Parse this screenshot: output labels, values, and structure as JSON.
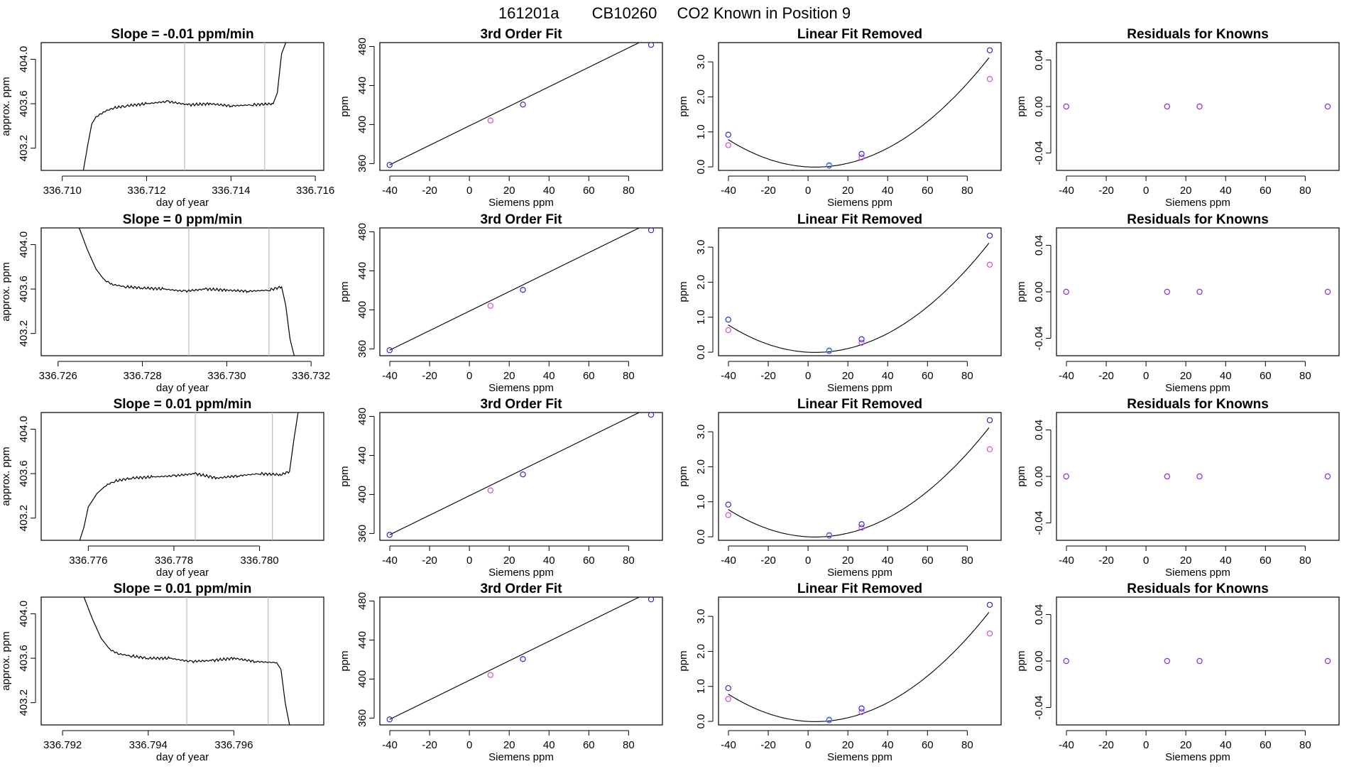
{
  "page": {
    "title_id": "161201a",
    "title_cyl": "CB10260",
    "title_text": "CO2 Known in Position  9"
  },
  "chart_data": [
    {
      "panel": "r1-trace",
      "type": "line",
      "title": "Slope =  -0.01  ppm/min",
      "xlabel": "day of year",
      "ylabel": "approx. ppm",
      "xlim": [
        336.7095,
        336.7162
      ],
      "ylim": [
        403.0,
        404.15
      ],
      "xticks": [
        336.71,
        336.712,
        336.714,
        336.716
      ],
      "xtick_labels": [
        "336.710",
        "336.712",
        "336.714",
        "336.716"
      ],
      "yticks": [
        403.2,
        403.6,
        404.0
      ],
      "ytick_labels": [
        "403.2",
        "403.6",
        "404.0"
      ],
      "vlines": [
        336.7129,
        336.7148
      ],
      "x": [
        336.7105,
        336.7106,
        336.7107,
        336.7108,
        336.711,
        336.7112,
        336.7115,
        336.712,
        336.7125,
        336.713,
        336.7135,
        336.714,
        336.7145,
        336.715,
        336.7151,
        336.7152,
        336.7153
      ],
      "y": [
        403.0,
        403.22,
        403.42,
        403.48,
        403.53,
        403.56,
        403.58,
        403.6,
        403.62,
        403.59,
        403.6,
        403.58,
        403.59,
        403.6,
        403.7,
        404.05,
        404.15
      ]
    },
    {
      "panel": "r1-fit",
      "type": "scatter",
      "title": "3rd Order Fit",
      "xlabel": "Siemens ppm",
      "ylabel": "ppm",
      "xlim": [
        -45,
        97
      ],
      "ylim": [
        353,
        484
      ],
      "xticks": [
        -40,
        -20,
        0,
        20,
        40,
        60,
        80
      ],
      "yticks": [
        360,
        400,
        440,
        480
      ],
      "x": [
        -40.1,
        10.6,
        26.9,
        91.3
      ],
      "y": [
        358.6,
        404.2,
        420.5,
        481.7
      ],
      "fit_curve": {
        "slope": 1.0,
        "intercept": 398.7
      }
    },
    {
      "panel": "r1-linear",
      "type": "scatter",
      "title": "Linear Fit Removed",
      "xlabel": "Siemens ppm",
      "ylabel": "ppm",
      "xlim": [
        -45,
        97
      ],
      "ylim": [
        -0.1,
        3.55
      ],
      "xticks": [
        -40,
        -20,
        0,
        20,
        40,
        60,
        80
      ],
      "yticks": [
        0.0,
        1.0,
        2.0,
        3.0
      ],
      "ytick_labels": [
        "0.0",
        "1.0",
        "2.0",
        "3.0"
      ],
      "x": [
        -40.1,
        10.6,
        26.9,
        91.3
      ],
      "series": [
        {
          "values": [
            0.92,
            0.05,
            0.37,
            3.33
          ]
        },
        {
          "values": [
            0.62,
            0.03,
            0.27,
            2.51
          ]
        }
      ],
      "quadratic": [
        0.0,
        -0.003,
        0.00041
      ]
    },
    {
      "panel": "r1-resid",
      "type": "scatter",
      "title": "Residuals for Knowns",
      "xlabel": "Siemens ppm",
      "ylabel": "ppm",
      "xlim": [
        -45,
        97
      ],
      "ylim": [
        -0.055,
        0.055
      ],
      "xticks": [
        -40,
        -20,
        0,
        20,
        40,
        60,
        80
      ],
      "yticks": [
        -0.04,
        0.0,
        0.04
      ],
      "ytick_labels": [
        "-0.04",
        "0.00",
        "0.04"
      ],
      "x": [
        -40.1,
        10.6,
        26.9,
        91.3
      ],
      "y": [
        0,
        0,
        0,
        0
      ]
    },
    {
      "panel": "r2-trace",
      "type": "line",
      "title": "Slope =  0  ppm/min",
      "xlabel": "day of year",
      "ylabel": "approx. ppm",
      "xlim": [
        336.7256,
        336.7323
      ],
      "ylim": [
        403.0,
        404.15
      ],
      "xticks": [
        336.726,
        336.728,
        336.73,
        336.732
      ],
      "xtick_labels": [
        "336.726",
        "336.728",
        "336.730",
        "336.732"
      ],
      "yticks": [
        403.2,
        403.6,
        404.0
      ],
      "ytick_labels": [
        "403.2",
        "403.6",
        "404.0"
      ],
      "vlines": [
        336.7291,
        336.731
      ],
      "x": [
        336.7265,
        336.7267,
        336.7269,
        336.7271,
        336.7273,
        336.7276,
        336.728,
        336.7285,
        336.729,
        336.7295,
        336.73,
        336.7305,
        336.731,
        336.7313,
        336.7314,
        336.7315,
        336.7316
      ],
      "y": [
        404.15,
        403.95,
        403.78,
        403.68,
        403.64,
        403.62,
        403.61,
        403.6,
        403.58,
        403.6,
        403.59,
        403.58,
        403.59,
        403.62,
        403.45,
        403.15,
        403.0
      ]
    },
    {
      "panel": "r2-fit",
      "type": "scatter",
      "title": "3rd Order Fit",
      "xlabel": "Siemens ppm",
      "ylabel": "ppm",
      "xlim": [
        -45,
        97
      ],
      "ylim": [
        353,
        484
      ],
      "xticks": [
        -40,
        -20,
        0,
        20,
        40,
        60,
        80
      ],
      "yticks": [
        360,
        400,
        440,
        480
      ],
      "x": [
        -40.1,
        10.6,
        26.9,
        91.3
      ],
      "y": [
        358.6,
        404.2,
        420.5,
        481.7
      ],
      "fit_curve": {
        "slope": 1.0,
        "intercept": 398.7
      }
    },
    {
      "panel": "r2-linear",
      "type": "scatter",
      "title": "Linear Fit Removed",
      "xlabel": "Siemens ppm",
      "ylabel": "ppm",
      "xlim": [
        -45,
        97
      ],
      "ylim": [
        -0.1,
        3.55
      ],
      "xticks": [
        -40,
        -20,
        0,
        20,
        40,
        60,
        80
      ],
      "yticks": [
        0.0,
        1.0,
        2.0,
        3.0
      ],
      "ytick_labels": [
        "0.0",
        "1.0",
        "2.0",
        "3.0"
      ],
      "x": [
        -40.1,
        10.6,
        26.9,
        91.3
      ],
      "series": [
        {
          "values": [
            0.93,
            0.05,
            0.37,
            3.33
          ]
        },
        {
          "values": [
            0.63,
            0.03,
            0.27,
            2.5
          ]
        }
      ],
      "quadratic": [
        0.0,
        -0.003,
        0.00041
      ]
    },
    {
      "panel": "r2-resid",
      "type": "scatter",
      "title": "Residuals for Knowns",
      "xlabel": "Siemens ppm",
      "ylabel": "ppm",
      "xlim": [
        -45,
        97
      ],
      "ylim": [
        -0.055,
        0.055
      ],
      "xticks": [
        -40,
        -20,
        0,
        20,
        40,
        60,
        80
      ],
      "yticks": [
        -0.04,
        0.0,
        0.04
      ],
      "ytick_labels": [
        "-0.04",
        "0.00",
        "0.04"
      ],
      "x": [
        -40.1,
        10.6,
        26.9,
        91.3
      ],
      "y": [
        0,
        0,
        0,
        0
      ]
    },
    {
      "panel": "r3-trace",
      "type": "line",
      "title": "Slope =  0.01  ppm/min",
      "xlabel": "day of year",
      "ylabel": "approx. ppm",
      "xlim": [
        336.7749,
        336.7815
      ],
      "ylim": [
        403.0,
        404.15
      ],
      "xticks": [
        336.776,
        336.778,
        336.78
      ],
      "xtick_labels": [
        "336.776",
        "336.778",
        "336.780"
      ],
      "yticks": [
        403.2,
        403.6,
        404.0
      ],
      "ytick_labels": [
        "403.2",
        "403.6",
        "404.0"
      ],
      "vlines": [
        336.7785,
        336.7803
      ],
      "x": [
        336.7758,
        336.7759,
        336.776,
        336.7762,
        336.7764,
        336.7766,
        336.777,
        336.7775,
        336.778,
        336.7785,
        336.779,
        336.7795,
        336.78,
        336.7805,
        336.7807,
        336.7808,
        336.7809
      ],
      "y": [
        403.0,
        403.12,
        403.3,
        403.42,
        403.49,
        403.53,
        403.56,
        403.57,
        403.58,
        403.6,
        403.56,
        403.58,
        403.6,
        403.59,
        403.62,
        403.9,
        404.15
      ]
    },
    {
      "panel": "r3-fit",
      "type": "scatter",
      "title": "3rd Order Fit",
      "xlabel": "Siemens ppm",
      "ylabel": "ppm",
      "xlim": [
        -45,
        97
      ],
      "ylim": [
        353,
        484
      ],
      "xticks": [
        -40,
        -20,
        0,
        20,
        40,
        60,
        80
      ],
      "yticks": [
        360,
        400,
        440,
        480
      ],
      "x": [
        -40.1,
        10.6,
        26.9,
        91.3
      ],
      "y": [
        358.6,
        404.2,
        420.5,
        481.7
      ],
      "fit_curve": {
        "slope": 1.0,
        "intercept": 398.7
      }
    },
    {
      "panel": "r3-linear",
      "type": "scatter",
      "title": "Linear Fit Removed",
      "xlabel": "Siemens ppm",
      "ylabel": "ppm",
      "xlim": [
        -45,
        97
      ],
      "ylim": [
        -0.1,
        3.55
      ],
      "xticks": [
        -40,
        -20,
        0,
        20,
        40,
        60,
        80
      ],
      "yticks": [
        0.0,
        1.0,
        2.0,
        3.0
      ],
      "ytick_labels": [
        "0.0",
        "1.0",
        "2.0",
        "3.0"
      ],
      "x": [
        -40.1,
        10.6,
        26.9,
        91.3
      ],
      "series": [
        {
          "values": [
            0.92,
            0.05,
            0.36,
            3.33
          ]
        },
        {
          "values": [
            0.62,
            0.03,
            0.26,
            2.5
          ]
        }
      ],
      "quadratic": [
        0.0,
        -0.003,
        0.00041
      ]
    },
    {
      "panel": "r3-resid",
      "type": "scatter",
      "title": "Residuals for Knowns",
      "xlabel": "Siemens ppm",
      "ylabel": "ppm",
      "xlim": [
        -45,
        97
      ],
      "ylim": [
        -0.055,
        0.055
      ],
      "xticks": [
        -40,
        -20,
        0,
        20,
        40,
        60,
        80
      ],
      "yticks": [
        -0.04,
        0.0,
        0.04
      ],
      "ytick_labels": [
        "-0.04",
        "0.00",
        "0.04"
      ],
      "x": [
        -40.1,
        10.6,
        26.9,
        91.3
      ],
      "y": [
        0,
        0,
        0,
        0
      ]
    },
    {
      "panel": "r4-trace",
      "type": "line",
      "title": "Slope =  0.01  ppm/min",
      "xlabel": "day of year",
      "ylabel": "approx. ppm",
      "xlim": [
        336.7915,
        336.7981
      ],
      "ylim": [
        403.0,
        404.15
      ],
      "xticks": [
        336.792,
        336.794,
        336.796
      ],
      "xtick_labels": [
        "336.792",
        "336.794",
        "336.796"
      ],
      "yticks": [
        403.2,
        403.6,
        404.0
      ],
      "ytick_labels": [
        "403.2",
        "403.6",
        "404.0"
      ],
      "vlines": [
        336.7949,
        336.7968
      ],
      "x": [
        336.7925,
        336.7927,
        336.7929,
        336.7931,
        336.7933,
        336.7936,
        336.794,
        336.7945,
        336.795,
        336.7955,
        336.796,
        336.7965,
        336.797,
        336.7971,
        336.7972,
        336.7973
      ],
      "y": [
        404.15,
        403.95,
        403.78,
        403.68,
        403.64,
        403.62,
        403.6,
        403.6,
        403.57,
        403.58,
        403.6,
        403.57,
        403.56,
        403.5,
        403.2,
        403.0
      ]
    },
    {
      "panel": "r4-fit",
      "type": "scatter",
      "title": "3rd Order Fit",
      "xlabel": "Siemens ppm",
      "ylabel": "ppm",
      "xlim": [
        -45,
        97
      ],
      "ylim": [
        353,
        484
      ],
      "xticks": [
        -40,
        -20,
        0,
        20,
        40,
        60,
        80
      ],
      "yticks": [
        360,
        400,
        440,
        480
      ],
      "x": [
        -40.1,
        10.6,
        26.9,
        91.3
      ],
      "y": [
        358.6,
        404.2,
        420.5,
        481.7
      ],
      "fit_curve": {
        "slope": 1.0,
        "intercept": 398.7
      }
    },
    {
      "panel": "r4-linear",
      "type": "scatter",
      "title": "Linear Fit Removed",
      "xlabel": "Siemens ppm",
      "ylabel": "ppm",
      "xlim": [
        -45,
        97
      ],
      "ylim": [
        -0.1,
        3.55
      ],
      "xticks": [
        -40,
        -20,
        0,
        20,
        40,
        60,
        80
      ],
      "yticks": [
        0.0,
        1.0,
        2.0,
        3.0
      ],
      "ytick_labels": [
        "0.0",
        "1.0",
        "2.0",
        "3.0"
      ],
      "x": [
        -40.1,
        10.6,
        26.9,
        91.3
      ],
      "series": [
        {
          "values": [
            0.95,
            0.05,
            0.37,
            3.33
          ]
        },
        {
          "values": [
            0.64,
            0.03,
            0.27,
            2.51
          ]
        }
      ],
      "quadratic": [
        0.0,
        -0.003,
        0.00041
      ]
    },
    {
      "panel": "r4-resid",
      "type": "scatter",
      "title": "Residuals for Knowns",
      "xlabel": "Siemens ppm",
      "ylabel": "ppm",
      "xlim": [
        -45,
        97
      ],
      "ylim": [
        -0.055,
        0.055
      ],
      "xticks": [
        -40,
        -20,
        0,
        20,
        40,
        60,
        80
      ],
      "yticks": [
        -0.04,
        0.0,
        0.04
      ],
      "ytick_labels": [
        "-0.04",
        "0.00",
        "0.04"
      ],
      "x": [
        -40.1,
        10.6,
        26.9,
        91.3
      ],
      "y": [
        0,
        0,
        0,
        0
      ]
    }
  ],
  "colors": {
    "axis": "#000000",
    "trace": "#000000",
    "vline": "#bdbdbd",
    "point_blue": "#1a1acc",
    "point_magenta": "#cc44cc",
    "point_cyan": "#1a8ccc",
    "point_purple": "#8a2be2"
  }
}
